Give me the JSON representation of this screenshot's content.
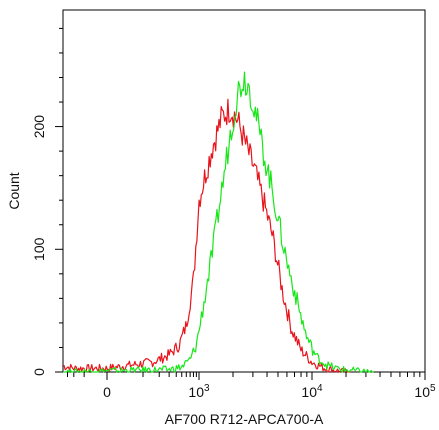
{
  "chart_data": {
    "type": "line",
    "title": "",
    "xlabel": "AF700 R712-APCA700-A",
    "ylabel": "Count",
    "x_scale": "biexponential",
    "xlim": [
      -400,
      100000
    ],
    "ylim": [
      0,
      295
    ],
    "x_ticks": [
      {
        "value": 0,
        "label": "0"
      },
      {
        "value": 1000,
        "label": "10",
        "exp": "3"
      },
      {
        "value": 10000,
        "label": "10",
        "exp": "4"
      },
      {
        "value": 100000,
        "label": "10",
        "exp": "5"
      }
    ],
    "y_ticks": [
      {
        "value": 0,
        "label": "0"
      },
      {
        "value": 100,
        "label": "100"
      },
      {
        "value": 200,
        "label": "200"
      }
    ],
    "grid": false,
    "legend": "none",
    "series": [
      {
        "color": "#e8141b",
        "x": [
          -400,
          -200,
          0,
          150,
          300,
          450,
          600,
          800,
          1000,
          1300,
          1600,
          1900,
          2200,
          2600,
          3100,
          3700,
          4500,
          5500,
          6600,
          8000,
          10000,
          13000,
          17000,
          22000
        ],
        "y": [
          5,
          3,
          3,
          8,
          14,
          22,
          38,
          75,
          140,
          182,
          208,
          215,
          205,
          185,
          165,
          140,
          110,
          65,
          35,
          18,
          8,
          3,
          1,
          0
        ]
      },
      {
        "color": "#19e619",
        "x": [
          -400,
          0,
          300,
          500,
          700,
          900,
          1100,
          1300,
          1600,
          1900,
          2200,
          2500,
          2800,
          3200,
          3700,
          4300,
          5000,
          6000,
          7500,
          9000,
          11000,
          14000,
          18000,
          25000,
          35000
        ],
        "y": [
          0,
          1,
          2,
          4,
          10,
          22,
          55,
          95,
          150,
          195,
          228,
          240,
          232,
          210,
          180,
          155,
          125,
          90,
          55,
          28,
          12,
          5,
          2,
          1,
          0
        ]
      }
    ]
  }
}
